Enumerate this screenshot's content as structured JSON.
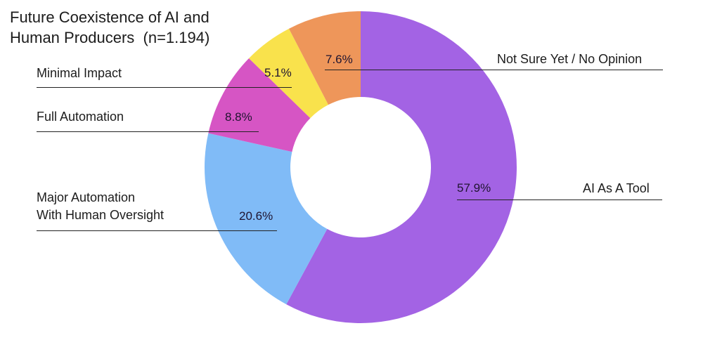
{
  "chart_data": {
    "type": "pie",
    "subtype": "donut",
    "title": "Future Coexistence of AI and Human Producers  (n=1.194)",
    "title_lines": [
      "Future Coexistence of AI and",
      "Human Producers  (n=1.194)"
    ],
    "sample_size": "n=1.194",
    "categories": [
      "AI As A Tool",
      "Major Automation With Human Oversight",
      "Full Automation",
      "Minimal Impact",
      "Not Sure Yet / No Opinion"
    ],
    "values": [
      57.9,
      20.6,
      8.8,
      5.1,
      7.6
    ],
    "value_labels": [
      "57.9%",
      "20.6%",
      "8.8%",
      "5.1%",
      "7.6%"
    ],
    "colors": [
      "#a363e4",
      "#80bbf7",
      "#d655c4",
      "#f9e24c",
      "#ee965a"
    ],
    "start_angle_deg": 0,
    "direction": "clockwise",
    "legend": "none (leader-line labels)"
  },
  "labels": {
    "ai_tool": "AI As A Tool",
    "major_line1": "Major Automation",
    "major_line2": "With Human Oversight",
    "full": "Full Automation",
    "minimal": "Minimal Impact",
    "not_sure": "Not Sure Yet / No Opinion"
  },
  "pcts": {
    "ai_tool": "57.9%",
    "major": "20.6%",
    "full": "8.8%",
    "minimal": "5.1%",
    "not_sure": "7.6%"
  }
}
